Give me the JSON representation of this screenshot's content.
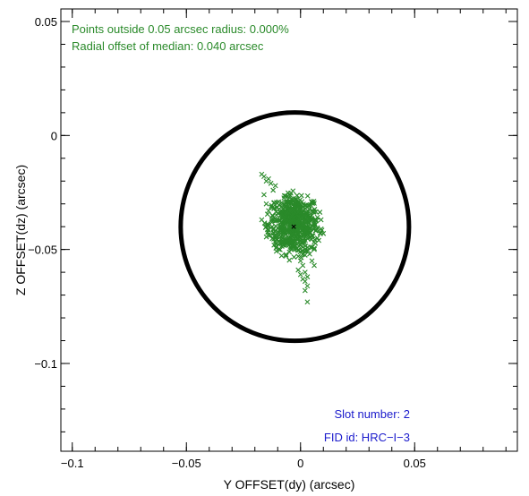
{
  "chart_data": {
    "type": "scatter",
    "xlabel": "Y OFFSET(dy) (arcsec)",
    "ylabel": "Z OFFSET(dz) (arcsec)",
    "xlim": [
      -0.105,
      0.095
    ],
    "ylim": [
      -0.1385,
      0.0555
    ],
    "x_ticks": [
      {
        "value": -0.1,
        "label": "−0.1"
      },
      {
        "value": -0.05,
        "label": "−0.05"
      },
      {
        "value": 0,
        "label": "0"
      },
      {
        "value": 0.05,
        "label": "0.05"
      }
    ],
    "y_ticks": [
      {
        "value": 0.05,
        "label": "0.05"
      },
      {
        "value": 0,
        "label": "0"
      },
      {
        "value": -0.05,
        "label": "−0.05"
      },
      {
        "value": -0.1,
        "label": "−0.1"
      }
    ],
    "x_minor_step": 0.01,
    "y_minor_step": 0.01,
    "grid": false,
    "circle": {
      "center": [
        -0.0025,
        -0.04
      ],
      "radius": 0.05,
      "color": "#000000"
    },
    "median": {
      "x": -0.003,
      "y": -0.04,
      "marker": "x",
      "color": "#000000"
    },
    "series": [
      {
        "marker": "x",
        "color": "#2a8a2a",
        "cluster": {
          "center": [
            -0.003,
            -0.039
          ],
          "sx": 0.0055,
          "sy": 0.0065,
          "count": 650
        },
        "tail_points": [
          [
            -0.017,
            -0.017
          ],
          [
            -0.016,
            -0.018
          ],
          [
            -0.015,
            -0.02
          ],
          [
            -0.014,
            -0.019
          ],
          [
            -0.013,
            -0.021
          ],
          [
            -0.016,
            -0.026
          ],
          [
            -0.015,
            -0.03
          ],
          [
            -0.014,
            -0.033
          ],
          [
            -0.012,
            -0.024
          ],
          [
            -0.011,
            -0.022
          ],
          [
            -0.017,
            -0.037
          ],
          [
            -0.015,
            -0.04
          ],
          [
            -0.001,
            -0.053
          ],
          [
            0.0,
            -0.055
          ],
          [
            0.001,
            -0.057
          ],
          [
            0.002,
            -0.06
          ],
          [
            0.003,
            -0.062
          ],
          [
            0.002,
            -0.064
          ],
          [
            0.003,
            -0.066
          ],
          [
            0.001,
            -0.063
          ],
          [
            -0.001,
            -0.059
          ],
          [
            0.0,
            -0.061
          ],
          [
            0.002,
            -0.068
          ],
          [
            0.003,
            -0.073
          ],
          [
            0.006,
            -0.057
          ],
          [
            0.005,
            -0.055
          ],
          [
            0.004,
            -0.052
          ],
          [
            0.006,
            -0.05
          ],
          [
            0.008,
            -0.046
          ],
          [
            0.009,
            -0.041
          ],
          [
            0.009,
            -0.037
          ],
          [
            0.01,
            -0.043
          ]
        ]
      }
    ],
    "annotations": {
      "points_outside": "Points outside 0.05 arcsec radius: 0.000%",
      "radial_offset": "Radial offset of median: 0.040 arcsec",
      "slot": "Slot number: 2",
      "fid": "FID id: HRC−I−3",
      "green": "#2a8a2a",
      "blue": "#1a1acc"
    }
  }
}
